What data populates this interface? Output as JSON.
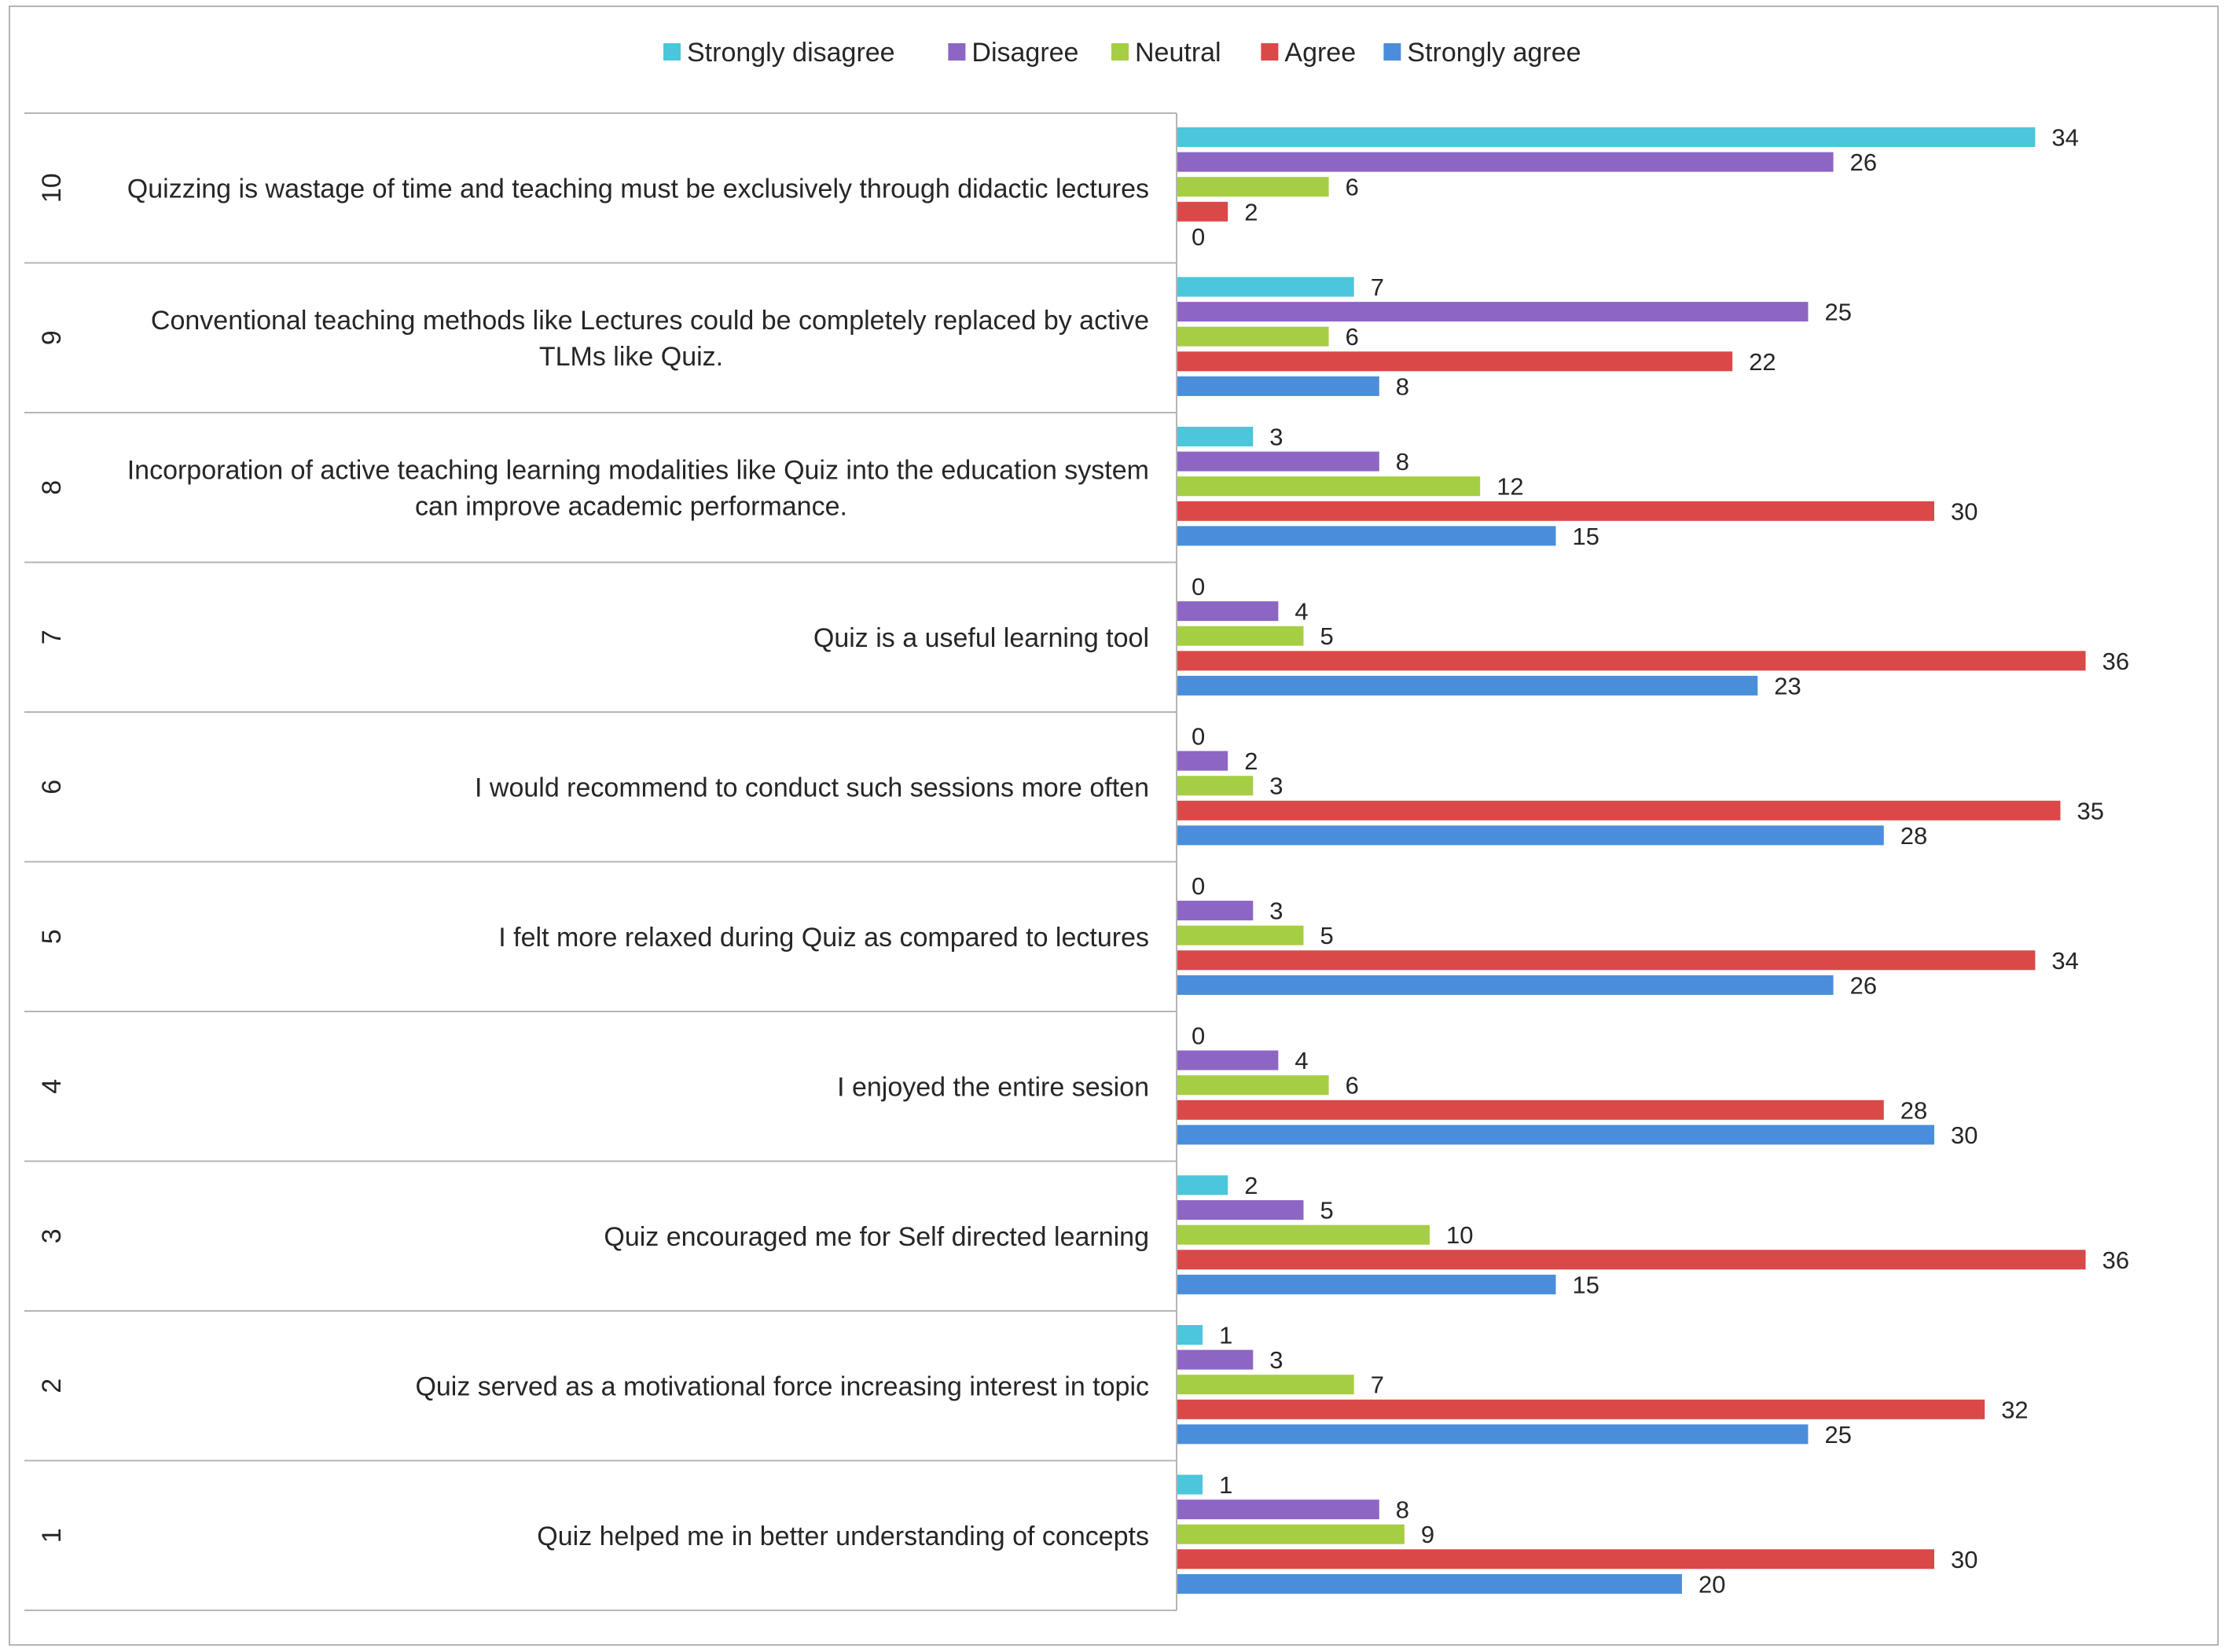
{
  "chart_data": {
    "type": "bar",
    "orientation": "horizontal",
    "legend_position": "top",
    "grid": false,
    "xlim": [
      0,
      40
    ],
    "colors": {
      "Strongly disagree": "#4BC6DB",
      "Disagree": "#8D66C4",
      "Neutral": "#A6CE44",
      "Agree": "#DB4848",
      "Strongly agree": "#4A8EDB"
    },
    "series_names": [
      "Strongly disagree",
      "Disagree",
      "Neutral",
      "Agree",
      "Strongly agree"
    ],
    "categories": [
      {
        "number": "10",
        "label_lines": [
          "Quizzing is wastage of time and teaching must be exclusively through didactic lectures"
        ],
        "values": [
          34,
          26,
          6,
          2,
          0
        ]
      },
      {
        "number": "9",
        "label_lines": [
          "Conventional teaching methods like Lectures could be completely replaced by active",
          "TLMs like Quiz."
        ],
        "values": [
          7,
          25,
          6,
          22,
          8
        ]
      },
      {
        "number": "8",
        "label_lines": [
          "Incorporation of active teaching learning modalities like Quiz into the education system",
          "can improve academic performance."
        ],
        "values": [
          3,
          8,
          12,
          30,
          15
        ]
      },
      {
        "number": "7",
        "label_lines": [
          "Quiz is a useful learning tool"
        ],
        "values": [
          0,
          4,
          5,
          36,
          23
        ]
      },
      {
        "number": "6",
        "label_lines": [
          "I would recommend to conduct such sessions more often"
        ],
        "values": [
          0,
          2,
          3,
          35,
          28
        ]
      },
      {
        "number": "5",
        "label_lines": [
          "I felt more relaxed during Quiz as compared to lectures"
        ],
        "values": [
          0,
          3,
          5,
          34,
          26
        ]
      },
      {
        "number": "4",
        "label_lines": [
          "I enjoyed the entire sesion"
        ],
        "values": [
          0,
          4,
          6,
          28,
          30
        ]
      },
      {
        "number": "3",
        "label_lines": [
          "Quiz encouraged me for Self directed learning"
        ],
        "values": [
          2,
          5,
          10,
          36,
          15
        ]
      },
      {
        "number": "2",
        "label_lines": [
          "Quiz served as a motivational force increasing interest in topic"
        ],
        "values": [
          1,
          3,
          7,
          32,
          25
        ]
      },
      {
        "number": "1",
        "label_lines": [
          "Quiz helped me in better understanding of concepts"
        ],
        "values": [
          1,
          8,
          9,
          30,
          20
        ]
      }
    ]
  }
}
